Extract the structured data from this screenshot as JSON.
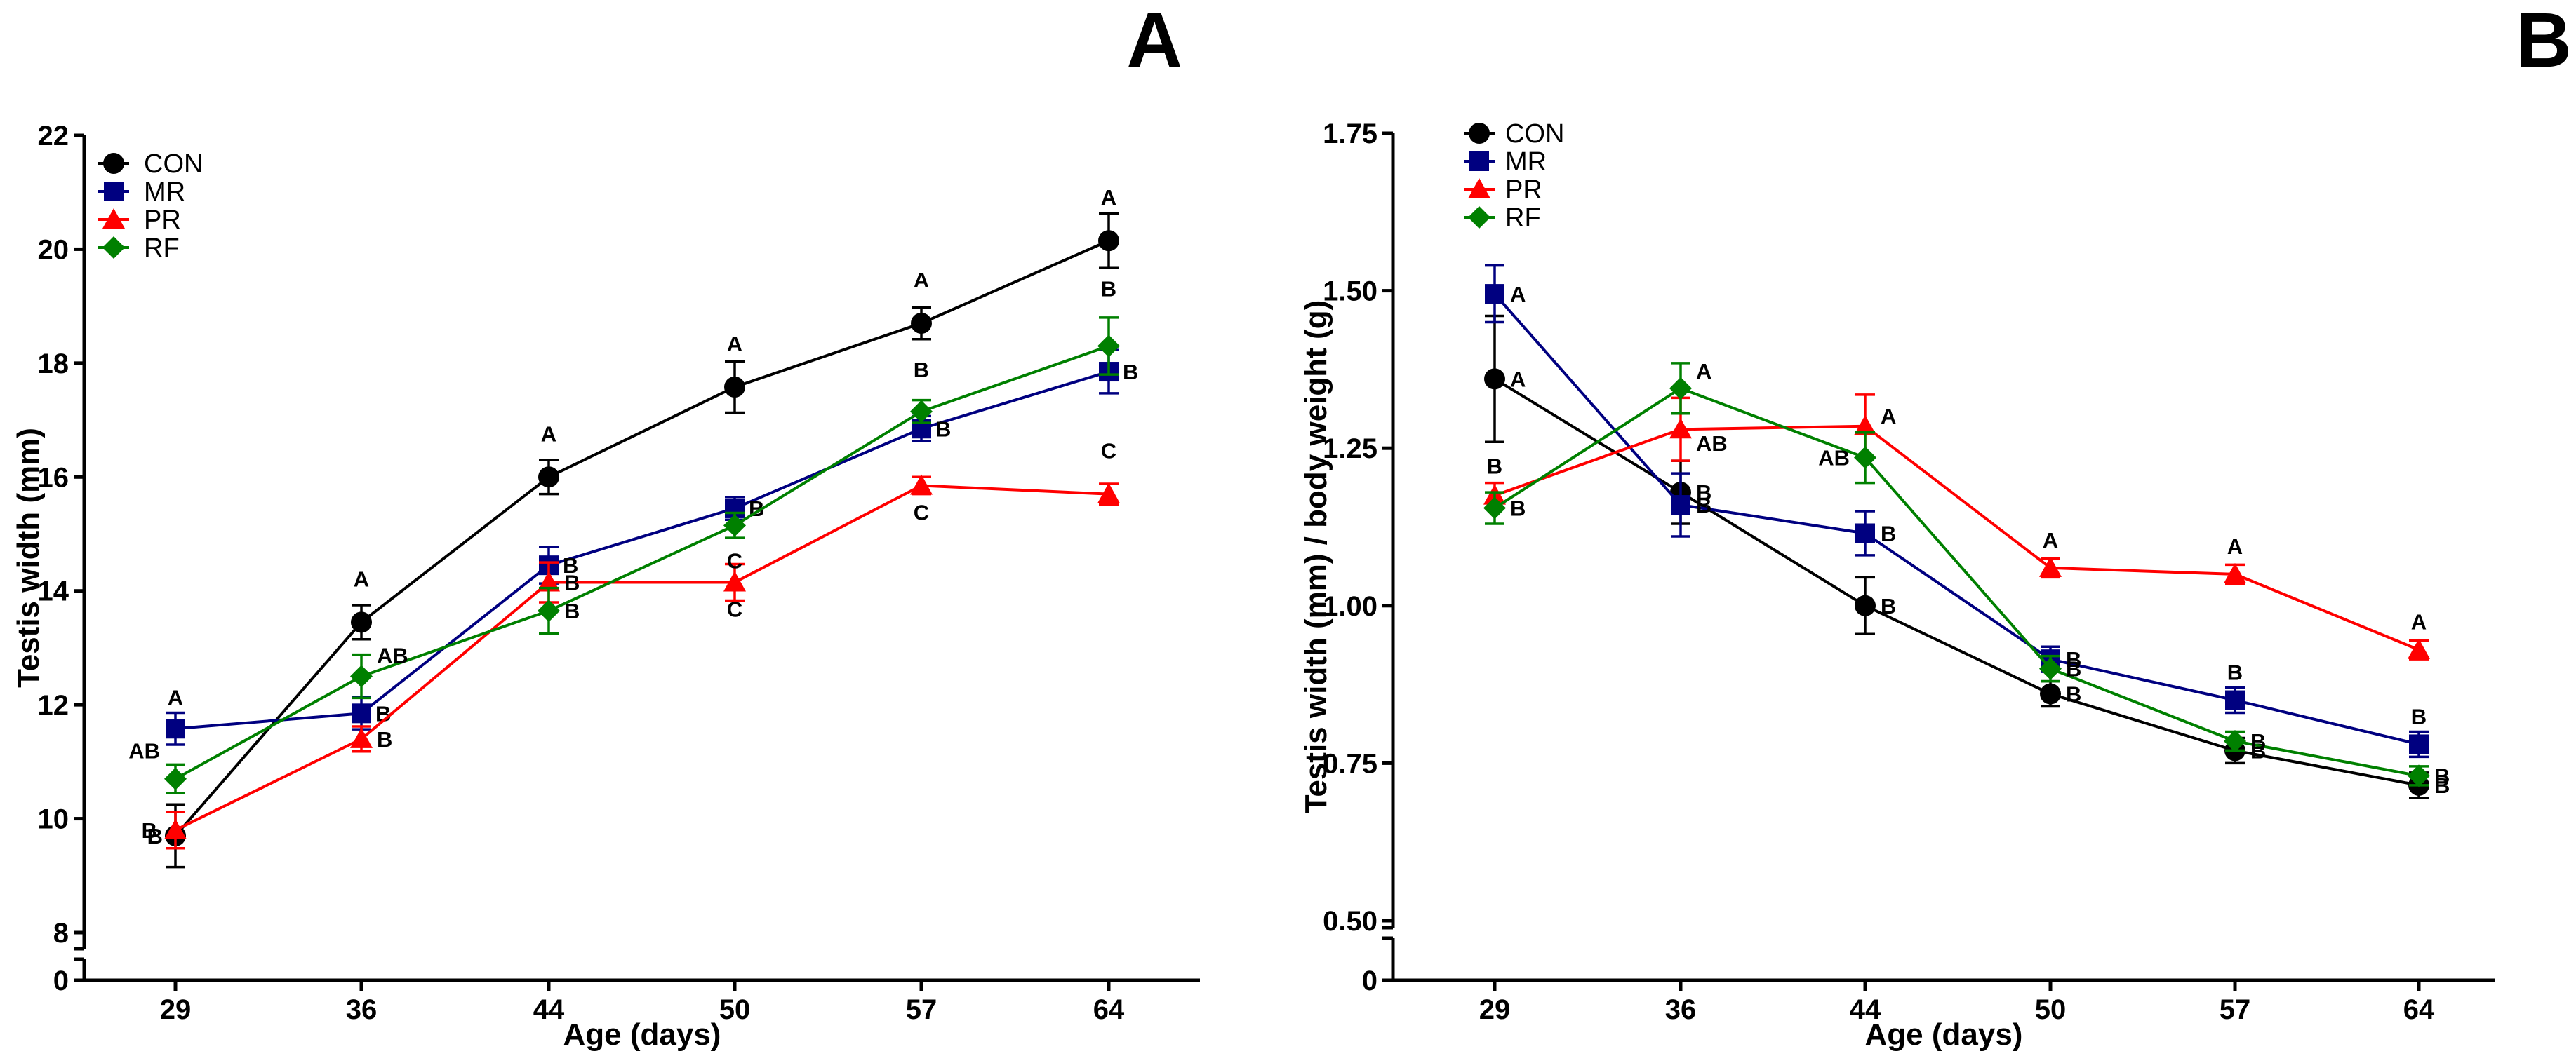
{
  "chart_data": [
    {
      "type": "line",
      "panel_label": "A",
      "title": "",
      "xlabel": "Age (days)",
      "ylabel": "Testis width (mm)",
      "categories": [
        "29",
        "36",
        "44",
        "50",
        "57",
        "64"
      ],
      "ylim": [
        8,
        22
      ],
      "yticks": [
        "0",
        "8",
        "10",
        "12",
        "14",
        "16",
        "18",
        "20",
        "22"
      ],
      "axis_break": true,
      "legend_position": "top-left",
      "series": [
        {
          "name": "CON",
          "color": "#000000",
          "marker": "circle",
          "values": [
            9.7,
            13.45,
            16.0,
            17.58,
            18.7,
            20.15
          ],
          "errors": [
            0.55,
            0.3,
            0.3,
            0.45,
            0.28,
            0.48
          ],
          "letters": [
            "B",
            "A",
            "A",
            "A",
            "A",
            "A"
          ]
        },
        {
          "name": "MR",
          "color": "#000080",
          "marker": "square",
          "values": [
            11.58,
            11.85,
            14.45,
            15.45,
            16.85,
            17.85
          ],
          "errors": [
            0.28,
            0.28,
            0.32,
            0.2,
            0.22,
            0.38
          ],
          "letters": [
            "A",
            "B",
            "B",
            "B",
            "B",
            "B"
          ]
        },
        {
          "name": "PR",
          "color": "#ff0000",
          "marker": "triangle",
          "values": [
            9.8,
            11.4,
            14.15,
            14.15,
            15.85,
            15.7
          ],
          "errors": [
            0.32,
            0.22,
            0.35,
            0.32,
            0.15,
            0.18
          ],
          "letters": [
            "B",
            "B",
            "B",
            "C",
            "C",
            "C"
          ]
        },
        {
          "name": "RF",
          "color": "#008000",
          "marker": "diamond",
          "values": [
            10.7,
            12.5,
            13.65,
            15.15,
            17.15,
            18.3
          ],
          "errors": [
            0.25,
            0.38,
            0.4,
            0.22,
            0.2,
            0.5
          ],
          "letters": [
            "AB",
            "AB",
            "B",
            "C",
            "B",
            "B"
          ]
        }
      ]
    },
    {
      "type": "line",
      "panel_label": "B",
      "title": "",
      "xlabel": "Age (days)",
      "ylabel": "Testis width (mm) / body weight (g)",
      "categories": [
        "29",
        "36",
        "44",
        "50",
        "57",
        "64"
      ],
      "ylim": [
        0.5,
        1.75
      ],
      "yticks": [
        "0",
        "0.50",
        "0.75",
        "1.00",
        "1.25",
        "1.50",
        "1.75"
      ],
      "axis_break": true,
      "legend_position": "top-left",
      "series": [
        {
          "name": "CON",
          "color": "#000000",
          "marker": "circle",
          "values": [
            1.36,
            1.18,
            1.0,
            0.86,
            0.77,
            0.715
          ],
          "errors": [
            0.1,
            0.05,
            0.045,
            0.02,
            0.02,
            0.02
          ],
          "letters": [
            "A",
            "B",
            "B",
            "B",
            "B",
            "B"
          ]
        },
        {
          "name": "MR",
          "color": "#000080",
          "marker": "square",
          "values": [
            1.495,
            1.16,
            1.115,
            0.915,
            0.85,
            0.78
          ],
          "errors": [
            0.045,
            0.05,
            0.035,
            0.02,
            0.02,
            0.02
          ],
          "letters": [
            "A",
            "B",
            "B",
            "B",
            "B",
            "B"
          ]
        },
        {
          "name": "PR",
          "color": "#ff0000",
          "marker": "triangle",
          "values": [
            1.175,
            1.28,
            1.285,
            1.06,
            1.05,
            0.93
          ],
          "errors": [
            0.02,
            0.05,
            0.05,
            0.015,
            0.015,
            0.015
          ],
          "letters": [
            "B",
            "AB",
            "A",
            "A",
            "A",
            "A"
          ]
        },
        {
          "name": "RF",
          "color": "#008000",
          "marker": "diamond",
          "values": [
            1.155,
            1.345,
            1.235,
            0.9,
            0.785,
            0.73
          ],
          "errors": [
            0.025,
            0.04,
            0.04,
            0.02,
            0.015,
            0.015
          ],
          "letters": [
            "B",
            "A",
            "AB",
            "B",
            "B",
            "B"
          ]
        }
      ]
    }
  ]
}
